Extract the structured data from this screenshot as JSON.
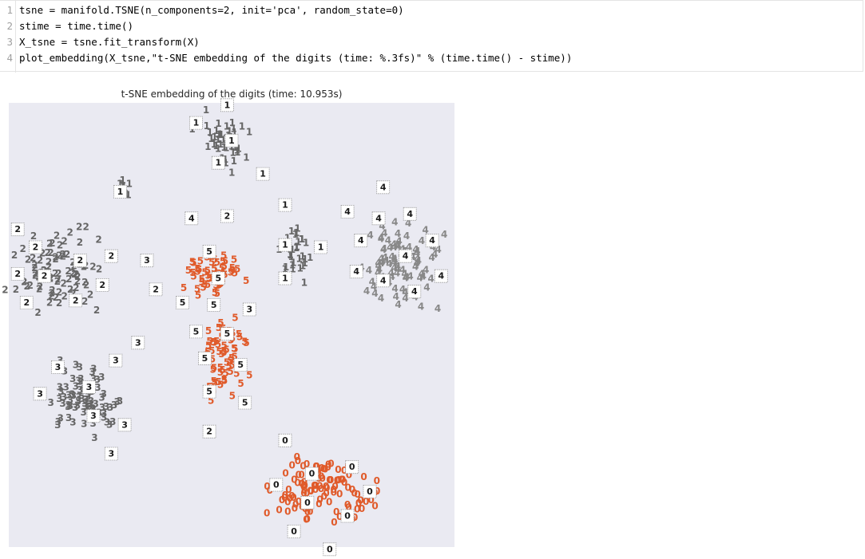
{
  "code_cell": {
    "lines": [
      {
        "num": "1",
        "text": "tsne = manifold.TSNE(n_components=2, init='pca', random_state=0)"
      },
      {
        "num": "2",
        "text": "stime = time.time()"
      },
      {
        "num": "3",
        "text": "X_tsne = tsne.fit_transform(X)"
      },
      {
        "num": "4",
        "text": "plot_embedding(X_tsne,\"t-SNE embedding of the digits (time: %.3fs)\" % (time.time() - stime))"
      }
    ]
  },
  "figure": {
    "title": "t-SNE embedding of the digits (time: 10.953s)"
  },
  "chart_data": {
    "type": "scatter",
    "title": "t-SNE embedding of the digits (time: 10.953s)",
    "xlabel": "",
    "ylabel": "",
    "xlim": [
      0,
      1
    ],
    "ylim": [
      0,
      1
    ],
    "grid": false,
    "background": "#eaeaf2",
    "ticks": "none",
    "colors": {
      "0": "#e05a2a",
      "5": "#e05a2a",
      "1": "#666666",
      "2": "#666666",
      "3": "#666666",
      "4": "#888888"
    },
    "clusters": [
      {
        "digit": "1",
        "center": [
          0.48,
          0.91
        ],
        "spread": [
          0.045,
          0.055
        ],
        "count": 45
      },
      {
        "digit": "1",
        "center": [
          0.27,
          0.81
        ],
        "spread": [
          0.02,
          0.015
        ],
        "count": 8
      },
      {
        "digit": "1",
        "center": [
          0.64,
          0.66
        ],
        "spread": [
          0.03,
          0.045
        ],
        "count": 32
      },
      {
        "digit": "2",
        "center": [
          0.12,
          0.62
        ],
        "spread": [
          0.085,
          0.07
        ],
        "count": 85
      },
      {
        "digit": "3",
        "center": [
          0.17,
          0.33
        ],
        "spread": [
          0.065,
          0.06
        ],
        "count": 75
      },
      {
        "digit": "4",
        "center": [
          0.87,
          0.63
        ],
        "spread": [
          0.075,
          0.08
        ],
        "count": 90
      },
      {
        "digit": "5",
        "center": [
          0.46,
          0.61
        ],
        "spread": [
          0.05,
          0.04
        ],
        "count": 55
      },
      {
        "digit": "5",
        "center": [
          0.48,
          0.43
        ],
        "spread": [
          0.045,
          0.075
        ],
        "count": 60
      },
      {
        "digit": "0",
        "center": [
          0.71,
          0.13
        ],
        "spread": [
          0.09,
          0.07
        ],
        "count": 110
      }
    ],
    "thumbnails": [
      {
        "digit": "1",
        "x": 0.49,
        "y": 0.995
      },
      {
        "digit": "1",
        "x": 0.42,
        "y": 0.955
      },
      {
        "digit": "1",
        "x": 0.5,
        "y": 0.915
      },
      {
        "digit": "1",
        "x": 0.47,
        "y": 0.865
      },
      {
        "digit": "1",
        "x": 0.57,
        "y": 0.84
      },
      {
        "digit": "1",
        "x": 0.25,
        "y": 0.8
      },
      {
        "digit": "1",
        "x": 0.62,
        "y": 0.77
      },
      {
        "digit": "1",
        "x": 0.62,
        "y": 0.68
      },
      {
        "digit": "1",
        "x": 0.7,
        "y": 0.675
      },
      {
        "digit": "1",
        "x": 0.62,
        "y": 0.605
      },
      {
        "digit": "4",
        "x": 0.41,
        "y": 0.74
      },
      {
        "digit": "2",
        "x": 0.49,
        "y": 0.745
      },
      {
        "digit": "4",
        "x": 0.76,
        "y": 0.755
      },
      {
        "digit": "4",
        "x": 0.84,
        "y": 0.81
      },
      {
        "digit": "4",
        "x": 0.83,
        "y": 0.74
      },
      {
        "digit": "4",
        "x": 0.9,
        "y": 0.75
      },
      {
        "digit": "4",
        "x": 0.79,
        "y": 0.69
      },
      {
        "digit": "4",
        "x": 0.95,
        "y": 0.69
      },
      {
        "digit": "4",
        "x": 0.89,
        "y": 0.655
      },
      {
        "digit": "4",
        "x": 0.78,
        "y": 0.62
      },
      {
        "digit": "4",
        "x": 0.84,
        "y": 0.6
      },
      {
        "digit": "4",
        "x": 0.97,
        "y": 0.61
      },
      {
        "digit": "4",
        "x": 0.91,
        "y": 0.575
      },
      {
        "digit": "2",
        "x": 0.02,
        "y": 0.715
      },
      {
        "digit": "2",
        "x": 0.06,
        "y": 0.675
      },
      {
        "digit": "2",
        "x": 0.16,
        "y": 0.645
      },
      {
        "digit": "2",
        "x": 0.23,
        "y": 0.655
      },
      {
        "digit": "2",
        "x": 0.02,
        "y": 0.615
      },
      {
        "digit": "2",
        "x": 0.08,
        "y": 0.61
      },
      {
        "digit": "2",
        "x": 0.21,
        "y": 0.59
      },
      {
        "digit": "2",
        "x": 0.04,
        "y": 0.55
      },
      {
        "digit": "2",
        "x": 0.15,
        "y": 0.555
      },
      {
        "digit": "2",
        "x": 0.33,
        "y": 0.58
      },
      {
        "digit": "3",
        "x": 0.31,
        "y": 0.645
      },
      {
        "digit": "5",
        "x": 0.45,
        "y": 0.665
      },
      {
        "digit": "5",
        "x": 0.47,
        "y": 0.605
      },
      {
        "digit": "5",
        "x": 0.39,
        "y": 0.55
      },
      {
        "digit": "5",
        "x": 0.46,
        "y": 0.545
      },
      {
        "digit": "3",
        "x": 0.54,
        "y": 0.535
      },
      {
        "digit": "5",
        "x": 0.42,
        "y": 0.485
      },
      {
        "digit": "5",
        "x": 0.49,
        "y": 0.48
      },
      {
        "digit": "5",
        "x": 0.44,
        "y": 0.425
      },
      {
        "digit": "5",
        "x": 0.52,
        "y": 0.41
      },
      {
        "digit": "5",
        "x": 0.45,
        "y": 0.35
      },
      {
        "digit": "5",
        "x": 0.53,
        "y": 0.325
      },
      {
        "digit": "3",
        "x": 0.29,
        "y": 0.46
      },
      {
        "digit": "3",
        "x": 0.11,
        "y": 0.405
      },
      {
        "digit": "3",
        "x": 0.24,
        "y": 0.42
      },
      {
        "digit": "3",
        "x": 0.07,
        "y": 0.345
      },
      {
        "digit": "3",
        "x": 0.18,
        "y": 0.36
      },
      {
        "digit": "3",
        "x": 0.19,
        "y": 0.295
      },
      {
        "digit": "3",
        "x": 0.26,
        "y": 0.275
      },
      {
        "digit": "3",
        "x": 0.23,
        "y": 0.21
      },
      {
        "digit": "2",
        "x": 0.45,
        "y": 0.26
      },
      {
        "digit": "0",
        "x": 0.62,
        "y": 0.24
      },
      {
        "digit": "0",
        "x": 0.68,
        "y": 0.165
      },
      {
        "digit": "0",
        "x": 0.77,
        "y": 0.18
      },
      {
        "digit": "0",
        "x": 0.6,
        "y": 0.14
      },
      {
        "digit": "0",
        "x": 0.81,
        "y": 0.125
      },
      {
        "digit": "0",
        "x": 0.67,
        "y": 0.1
      },
      {
        "digit": "0",
        "x": 0.76,
        "y": 0.07
      },
      {
        "digit": "0",
        "x": 0.64,
        "y": 0.035
      },
      {
        "digit": "0",
        "x": 0.72,
        "y": -0.005
      }
    ]
  }
}
